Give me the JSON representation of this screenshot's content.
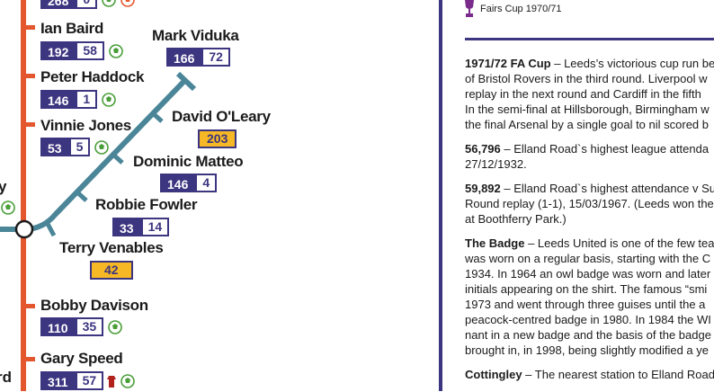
{
  "players": {
    "top": {
      "a": "268",
      "b": "0"
    },
    "ian_baird": {
      "name": "Ian Baird",
      "a": "192",
      "b": "58"
    },
    "peter_haddock": {
      "name": "Peter Haddock",
      "a": "146",
      "b": "1"
    },
    "vinnie_jones": {
      "name": "Vinnie Jones",
      "a": "53",
      "b": "5"
    },
    "bobby_davison": {
      "name": "Bobby Davison",
      "a": "110",
      "b": "35"
    },
    "gary_speed": {
      "name": "Gary Speed",
      "a": "311",
      "b": "57"
    },
    "mark_viduka": {
      "name": "Mark Viduka",
      "a": "166",
      "b": "72"
    },
    "david_oleary": {
      "name": "David O'Leary",
      "a": "203"
    },
    "dominic_matteo": {
      "name": "Dominic Matteo",
      "a": "146",
      "b": "4"
    },
    "robbie_fowler": {
      "name": "Robbie Fowler",
      "a": "33",
      "b": "14"
    },
    "terry_venables": {
      "name": "Terry Venables",
      "a": "42"
    }
  },
  "partials": {
    "left_mid": "y",
    "left_bottom": "rd"
  },
  "sidebar": {
    "trophy_caption": "Fairs Cup 1970/71",
    "facts": [
      {
        "head": "1971/72 FA Cup",
        "lines": [
          " – Leeds’s victorious cup run be",
          "of Bristol Rovers in the third round. Liverpool w",
          "replay in the next round and Cardiff in the fifth",
          "In the semi-final at Hillsborough, Birmingham w",
          "the final Arsenal by a single goal to nil scored b"
        ]
      },
      {
        "head": "56,796",
        "lines": [
          " – Elland Road`s highest league attenda",
          "27/12/1932."
        ]
      },
      {
        "head": "59,892",
        "lines": [
          " – Elland Road`s highest attendance v Su",
          "Round replay (1-1), 15/03/1967. (Leeds won the",
          "at Boothferry Park.)"
        ]
      },
      {
        "head": "The Badge",
        "lines": [
          " – Leeds United is one of the few tea",
          "was worn on a regular basis, starting with the C",
          "1934. In 1964 an owl badge was worn and later",
          "initials appearing on the shirt. The famous “smi",
          "1973 and went through three guises until the a",
          "peacock-centred badge in 1980. In 1984 the WI",
          "nant in a new badge and the basis of the badge",
          "brought in, in 1998, being slightly modified a ye"
        ]
      },
      {
        "head": "Cottingley",
        "lines": [
          " – The nearest station to Elland Road"
        ]
      }
    ]
  },
  "colors": {
    "orange_line": "#e4572e",
    "teal_line": "#4a8598",
    "navy": "#3c3580",
    "yellow": "#f6b824"
  },
  "icons": {
    "ball": "football-icon",
    "trophy": "trophy-icon",
    "shirt": "shirt-icon"
  }
}
